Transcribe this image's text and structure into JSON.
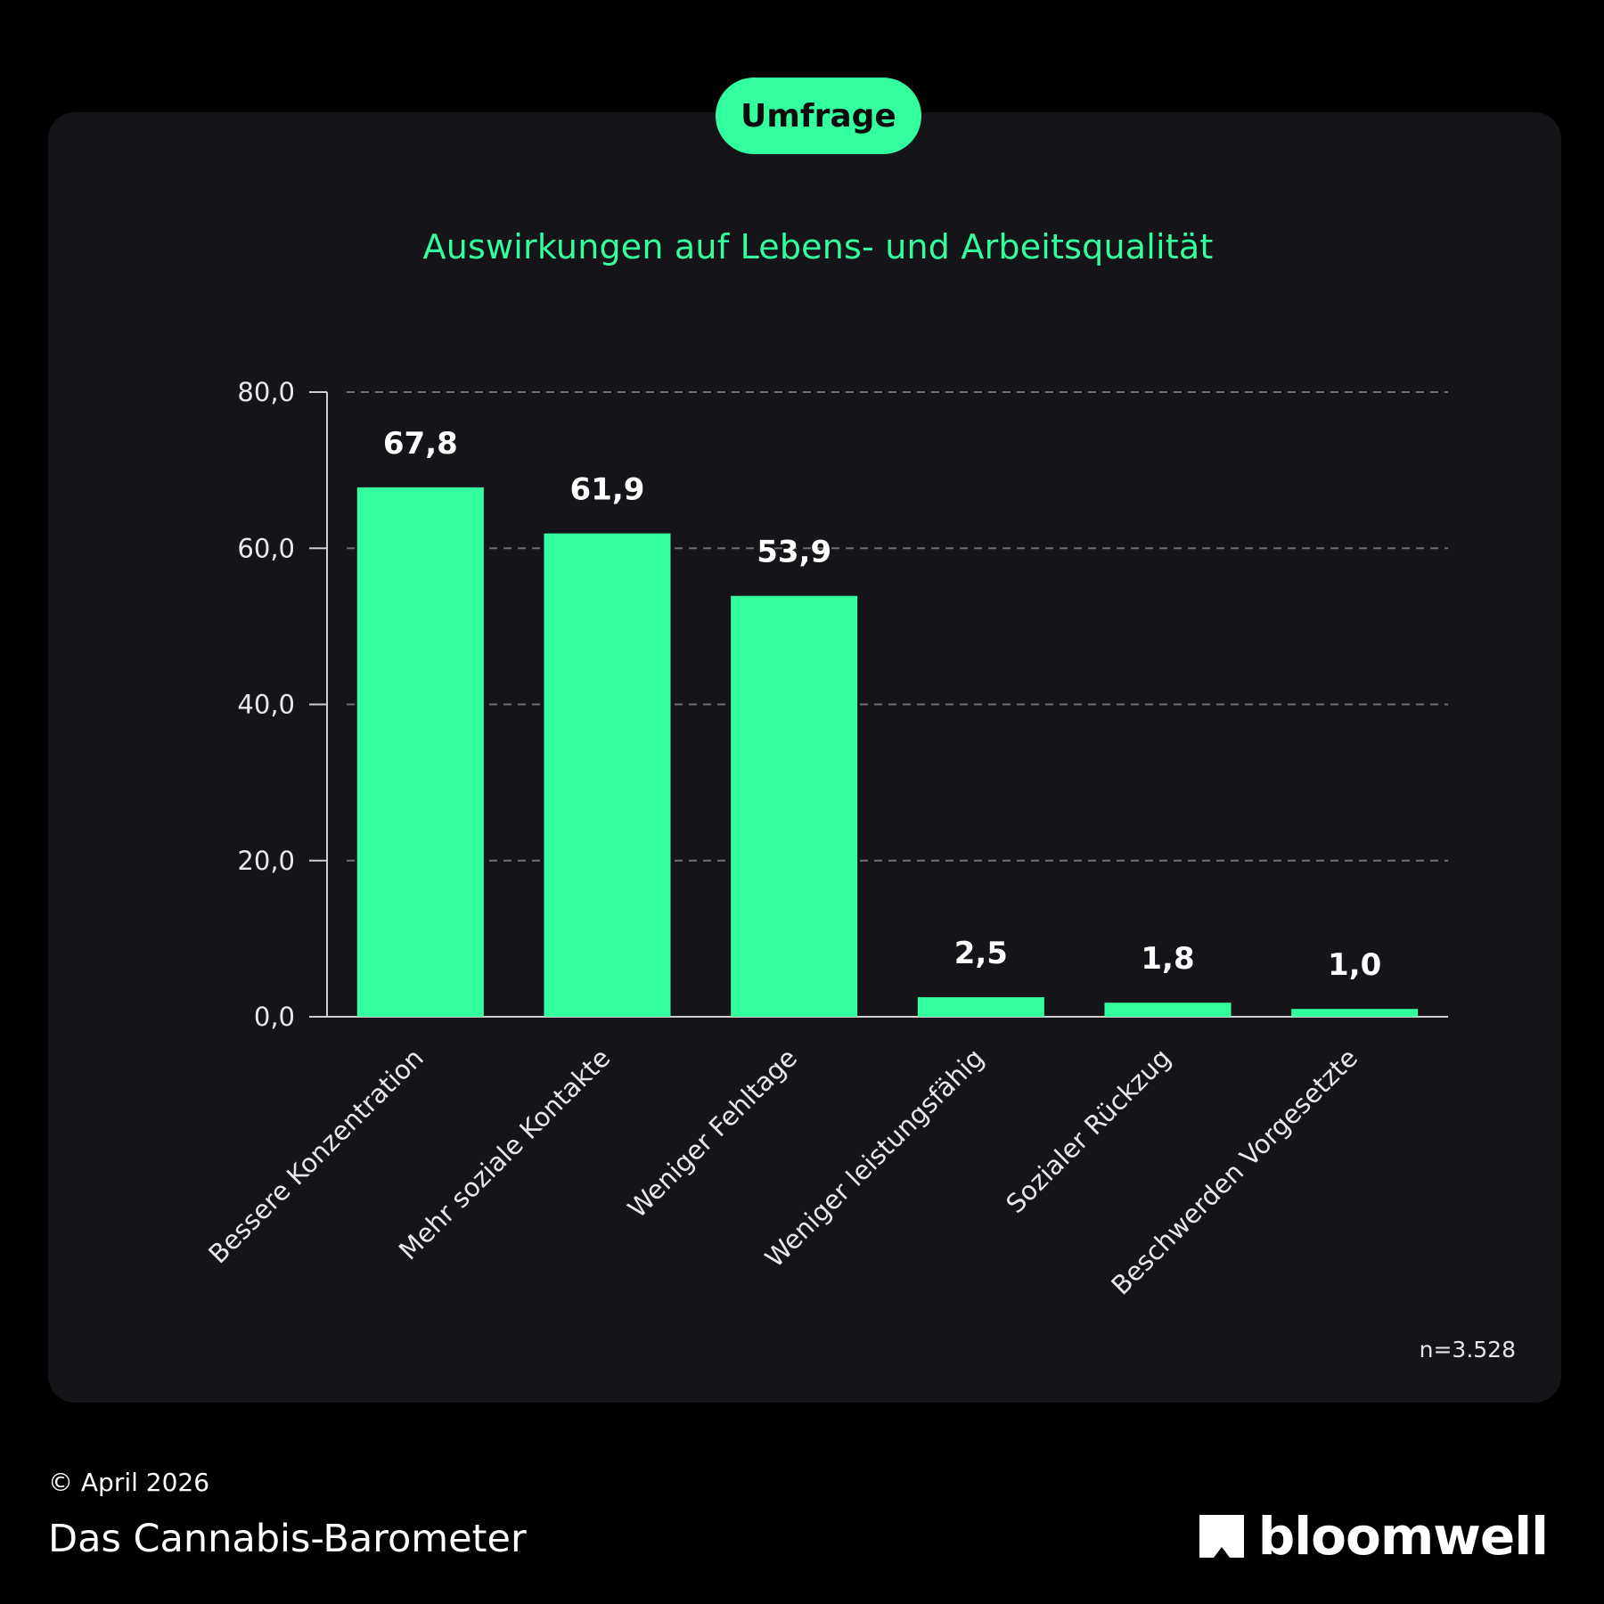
{
  "badge": {
    "label": "Umfrage"
  },
  "colors": {
    "accent": "#33ff9e",
    "background": "#000000",
    "card": "#141419",
    "grid": "#6e6e74",
    "text": "#ffffff"
  },
  "footer": {
    "date": "© April 2026",
    "title": "Das Cannabis-Barometer",
    "brand": "bloomwell",
    "brand_icon": "bloomwell-logo-icon"
  },
  "sample_size": "n=3.528",
  "chart_data": {
    "type": "bar",
    "title": "Auswirkungen auf Lebens- und Arbeitsqualität",
    "xlabel": "",
    "ylabel": "",
    "ylim": [
      0,
      80
    ],
    "yticks": [
      0,
      20,
      40,
      60,
      80
    ],
    "ytick_labels": [
      "0,0",
      "20,0",
      "40,0",
      "60,0",
      "80,0"
    ],
    "grid": true,
    "categories": [
      "Bessere Konzentration",
      "Mehr soziale Kontakte",
      "Weniger Fehltage",
      "Weniger leistungsfähig",
      "Sozialer Rückzug",
      "Beschwerden Vorgesetzte"
    ],
    "values": [
      67.8,
      61.9,
      53.9,
      2.5,
      1.8,
      1.0
    ],
    "value_labels": [
      "67,8",
      "61,9",
      "53,9",
      "2,5",
      "1,8",
      "1,0"
    ]
  }
}
